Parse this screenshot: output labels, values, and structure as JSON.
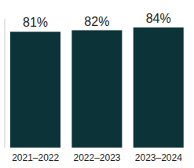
{
  "chart_data": {
    "type": "bar",
    "categories": [
      "2021–2022",
      "2022–2023",
      "2023–2024"
    ],
    "values": [
      81,
      82,
      84
    ],
    "value_labels": [
      "81%",
      "82%",
      "84%"
    ],
    "data_labels": true,
    "color": "#0c3438",
    "ylim": [
      0,
      90
    ],
    "tick_labels": "x"
  }
}
